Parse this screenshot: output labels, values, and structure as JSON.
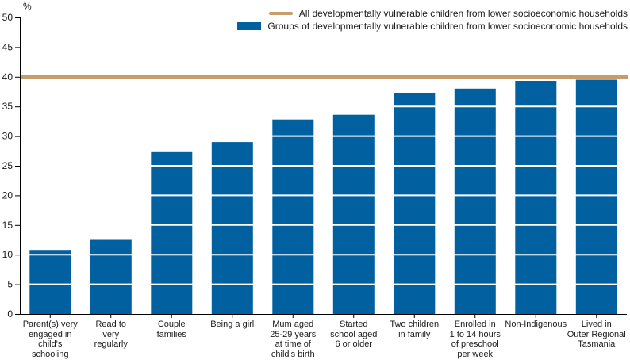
{
  "chart_data": {
    "type": "bar",
    "title": "",
    "ylabel": "%",
    "xlabel": "",
    "ylim": [
      0,
      50
    ],
    "ytick_step": 5,
    "yticks": [
      0,
      5,
      10,
      15,
      20,
      25,
      30,
      35,
      40,
      45,
      50
    ],
    "categories": [
      "Parent(s) very\nengaged in\nchild's\nschooling",
      "Read to\nvery\nregularly",
      "Couple\nfamilies",
      "Being a girl",
      "Mum aged\n25-29 years\nat time of\nchild's birth",
      "Started\nschool aged\n6 or older",
      "Two children\nin family",
      "Enrolled in\n1 to 14 hours\nof preschool\nper week",
      "Non-Indigenous",
      "Lived in\nOuter Regional\nTasmania"
    ],
    "values": [
      10.8,
      12.5,
      27.3,
      29.0,
      32.8,
      33.6,
      37.3,
      38.0,
      39.3,
      39.5
    ],
    "bar_color": "#0161A0",
    "axis_color": "#000000",
    "text_color": "#1a1a1a",
    "grid": {
      "style": "white overlay lines across bars",
      "at": [
        5,
        10,
        15,
        20,
        25,
        30,
        35,
        45
      ]
    },
    "reference_line": {
      "value": 40,
      "color": "#C79C6C"
    },
    "legend_position": "top-right",
    "legend": [
      {
        "label": "All developmentally vulnerable children from lower socioeconomic households",
        "swatch": "line",
        "color": "#C79C6C"
      },
      {
        "label": "Groups of developmentally vulnerable children from lower socioeconomic households",
        "swatch": "rect",
        "color": "#0161A0"
      }
    ]
  }
}
